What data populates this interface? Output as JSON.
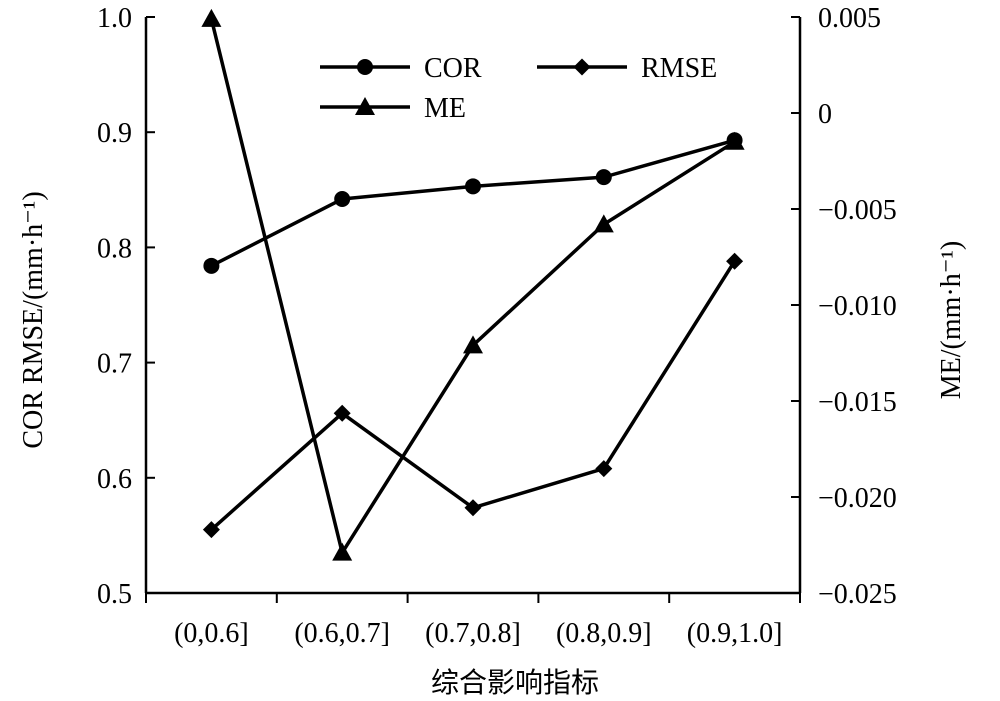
{
  "chart_data": {
    "type": "line",
    "categories": [
      "(0,0.6]",
      "(0.6,0.7]",
      "(0.7,0.8]",
      "(0.8,0.9]",
      "(0.9,1.0]"
    ],
    "xlabel": "综合影响指标",
    "ylabel_left": "COR RMSE/(mm·h⁻¹)",
    "ylabel_right": "ME/(mm·h⁻¹)",
    "ylim_left": [
      0.5,
      1.0
    ],
    "ylim_right": [
      -0.025,
      0.005
    ],
    "yticks_left": [
      "0.5",
      "0.6",
      "0.7",
      "0.8",
      "0.9",
      "1.0"
    ],
    "yticks_right": [
      "−0.025",
      "−0.020",
      "−0.015",
      "−0.010",
      "−0.005",
      "0",
      "0.005"
    ],
    "grid": false,
    "legend_position": "top",
    "series": [
      {
        "name": "COR",
        "axis": "left",
        "marker": "circle",
        "values": [
          0.784,
          0.842,
          0.853,
          0.861,
          0.893
        ]
      },
      {
        "name": "RMSE",
        "axis": "left",
        "marker": "diamond",
        "values": [
          0.555,
          0.656,
          0.574,
          0.608,
          0.788
        ]
      },
      {
        "name": "ME",
        "axis": "right",
        "marker": "triangle",
        "values": [
          0.0049,
          -0.0229,
          -0.0121,
          -0.0058,
          -0.0015
        ]
      }
    ]
  }
}
